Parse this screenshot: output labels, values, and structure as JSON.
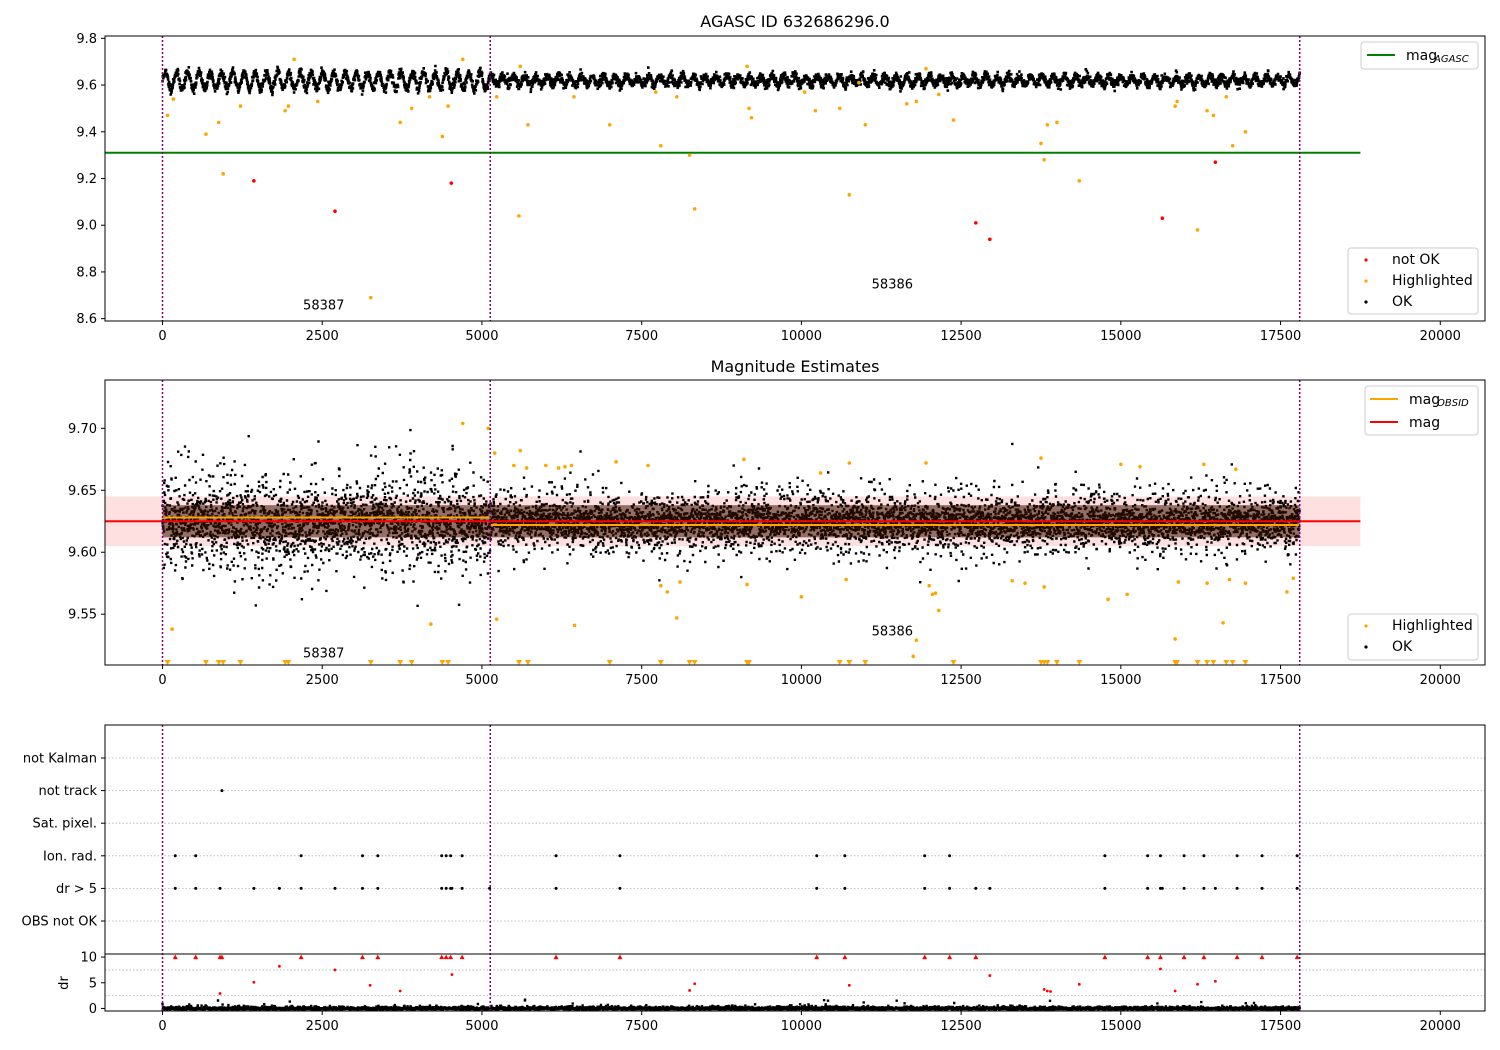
{
  "figure": {
    "background": "#ffffff"
  },
  "colors": {
    "ok": "#000000",
    "highlighted": "#ffa500",
    "not_ok": "#ff0000",
    "mag_agasc": "#008000",
    "mag_obsid": "#ffa500",
    "mag": "#ff0000",
    "mag_band": "#ff000022",
    "obs_boundary": "#800080",
    "grid": "#b0b0b0"
  },
  "chart_data": [
    {
      "type": "scatter",
      "title": "AGASC ID 632686296.0",
      "xlim": [
        -900,
        20700
      ],
      "ylim": [
        8.59,
        9.81
      ],
      "xticks": [
        0,
        2500,
        5000,
        7500,
        10000,
        12500,
        15000,
        17500,
        20000
      ],
      "yticks": [
        8.6,
        8.8,
        9.0,
        9.2,
        9.4,
        9.6,
        9.8
      ],
      "xtick_labels": [
        "0",
        "2500",
        "5000",
        "7500",
        "10000",
        "12500",
        "15000",
        "17500",
        "20000"
      ],
      "ytick_labels": [
        "8.6",
        "8.8",
        "9.0",
        "9.2",
        "9.4",
        "9.6",
        "9.8"
      ],
      "obs_boundaries": [
        0,
        5130,
        17800
      ],
      "obs_labels": [
        {
          "text": "58387",
          "x": 2200,
          "y": 8.64
        },
        {
          "text": "58386",
          "x": 11100,
          "y": 8.73
        }
      ],
      "mag_agasc_line": {
        "value": 9.31,
        "x_range": [
          -900,
          18750
        ]
      },
      "series": [
        {
          "name": "not OK",
          "x": [
            1430,
            2700,
            4520,
            12730,
            12950,
            15650,
            16480
          ],
          "y": [
            9.19,
            9.06,
            9.18,
            9.01,
            8.94,
            9.03,
            9.27
          ]
        },
        {
          "name": "Highlighted",
          "x": [
            80,
            170,
            680,
            880,
            950,
            1220,
            1920,
            1970,
            2060,
            2430,
            3260,
            3720,
            3900,
            4180,
            4380,
            4470,
            4700,
            5230,
            5580,
            5600,
            5720,
            6440,
            7000,
            7720,
            7800,
            8050,
            8250,
            8330,
            9150,
            9180,
            9220,
            10050,
            10220,
            10600,
            10750,
            10900,
            11000,
            11650,
            11800,
            11950,
            12150,
            12380,
            13750,
            13800,
            13850,
            14000,
            14350,
            15850,
            15880,
            16200,
            16350,
            16450,
            16650,
            16750,
            16950
          ],
          "y": [
            9.47,
            9.54,
            9.39,
            9.44,
            9.22,
            9.51,
            9.49,
            9.51,
            9.71,
            9.53,
            8.69,
            9.44,
            9.5,
            9.55,
            9.38,
            9.51,
            9.71,
            9.55,
            9.04,
            9.68,
            9.43,
            9.55,
            9.43,
            9.57,
            9.34,
            9.55,
            9.3,
            9.07,
            9.68,
            9.5,
            9.46,
            9.57,
            9.49,
            9.5,
            9.13,
            9.61,
            9.43,
            9.52,
            9.53,
            9.67,
            9.56,
            9.45,
            9.35,
            9.28,
            9.43,
            9.44,
            9.19,
            9.51,
            9.53,
            8.98,
            9.49,
            9.47,
            9.55,
            9.34,
            9.4
          ]
        },
        {
          "name": "OK",
          "x_range": [
            0,
            17800
          ],
          "y_center": 9.625,
          "y_spread": 0.04
        }
      ],
      "legends": [
        {
          "entries": [
            {
              "label": "mag",
              "sub": "AGASC",
              "color": "#008000",
              "kind": "line"
            }
          ],
          "placement": "upper right"
        },
        {
          "entries": [
            {
              "label": "not OK",
              "color": "#ff0000",
              "kind": "dot"
            },
            {
              "label": "Highlighted",
              "color": "#ffa500",
              "kind": "dot"
            },
            {
              "label": "OK",
              "color": "#000000",
              "kind": "dot"
            }
          ],
          "placement": "lower right"
        }
      ]
    },
    {
      "type": "scatter",
      "title": "Magnitude Estimates",
      "xlim": [
        -900,
        20700
      ],
      "ylim": [
        9.509,
        9.739
      ],
      "xticks": [
        0,
        2500,
        5000,
        7500,
        10000,
        12500,
        15000,
        17500,
        20000
      ],
      "yticks": [
        9.55,
        9.6,
        9.65,
        9.7
      ],
      "xtick_labels": [
        "0",
        "2500",
        "5000",
        "7500",
        "10000",
        "12500",
        "15000",
        "17500",
        "20000"
      ],
      "ytick_labels": [
        "9.55",
        "9.60",
        "9.65",
        "9.70"
      ],
      "obs_boundaries": [
        0,
        5130,
        17800
      ],
      "obs_labels": [
        {
          "text": "58387",
          "x": 2200,
          "y": 9.515
        },
        {
          "text": "58386",
          "x": 11100,
          "y": 9.533
        }
      ],
      "mag_line": {
        "value": 9.625,
        "band": [
          9.605,
          9.645
        ],
        "x_range": [
          -900,
          18750
        ]
      },
      "mag_obsid_lines": [
        {
          "x": [
            0,
            5130
          ],
          "value": 9.628
        },
        {
          "x": [
            5130,
            17800
          ],
          "value": 9.622
        }
      ],
      "series": [
        {
          "name": "Highlighted",
          "x": [
            150,
            4200,
            4700,
            5100,
            5200,
            5230,
            5500,
            5600,
            5700,
            6000,
            6200,
            6300,
            6400,
            6450,
            7100,
            7600,
            7800,
            7900,
            8050,
            8100,
            9100,
            9150,
            10000,
            10300,
            10700,
            10750,
            11750,
            11800,
            11950,
            12000,
            12050,
            12100,
            12150,
            13300,
            13500,
            13750,
            13800,
            14800,
            15000,
            15100,
            15300,
            15850,
            15900,
            16300,
            16350,
            16600,
            16700,
            16800,
            16950,
            17600,
            17700
          ],
          "y": [
            9.538,
            9.542,
            9.704,
            9.7,
            9.68,
            9.546,
            9.67,
            9.682,
            9.668,
            9.67,
            9.668,
            9.669,
            9.67,
            9.541,
            9.673,
            9.67,
            9.573,
            9.568,
            9.547,
            9.576,
            9.675,
            9.574,
            9.564,
            9.664,
            9.578,
            9.672,
            9.516,
            9.529,
            9.672,
            9.573,
            9.566,
            9.567,
            9.553,
            9.577,
            9.575,
            9.676,
            9.572,
            9.562,
            9.671,
            9.566,
            9.669,
            9.53,
            9.576,
            9.671,
            9.575,
            9.543,
            9.578,
            9.667,
            9.575,
            9.568,
            9.579
          ]
        },
        {
          "name": "Highlighted (below range)",
          "x": [
            80,
            680,
            880,
            950,
            1220,
            1920,
            1970,
            3260,
            3720,
            3900,
            4380,
            4470,
            5580,
            5720,
            7000,
            7800,
            8250,
            8330,
            9150,
            9180,
            10600,
            10750,
            11000,
            12380,
            13750,
            13800,
            13850,
            14000,
            14350,
            15850,
            15880,
            16200,
            16350,
            16450,
            16650,
            16750,
            16950
          ],
          "y": [
            8.5,
            8.5,
            8.5,
            8.5,
            8.5,
            8.5,
            8.5,
            8.5,
            8.5,
            8.5,
            8.5,
            8.5,
            8.5,
            8.5,
            8.5,
            8.5,
            8.5,
            8.5,
            8.5,
            8.5,
            8.5,
            8.5,
            8.5,
            8.5,
            8.5,
            8.5,
            8.5,
            8.5,
            8.5,
            8.5,
            8.5,
            8.5,
            8.5,
            8.5,
            8.5,
            8.5,
            8.5
          ]
        },
        {
          "name": "OK",
          "x_range": [
            0,
            17800
          ],
          "y_center": 9.625,
          "y_spread_left": 0.065,
          "y_spread_right": 0.04
        }
      ],
      "legends": [
        {
          "entries": [
            {
              "label": "mag",
              "sub": "OBSID",
              "color": "#ffa500",
              "kind": "line"
            },
            {
              "label": "mag",
              "color": "#ff0000",
              "kind": "line"
            }
          ],
          "placement": "upper right"
        },
        {
          "entries": [
            {
              "label": "Highlighted",
              "color": "#ffa500",
              "kind": "dot"
            },
            {
              "label": "OK",
              "color": "#000000",
              "kind": "dot"
            }
          ],
          "placement": "lower right"
        }
      ]
    },
    {
      "type": "scatter",
      "title": "",
      "xlim": [
        -900,
        20700
      ],
      "xticks": [
        0,
        2500,
        5000,
        7500,
        10000,
        12500,
        15000,
        17500,
        20000
      ],
      "xtick_labels": [
        "0",
        "2500",
        "5000",
        "7500",
        "10000",
        "12500",
        "15000",
        "17500",
        "20000"
      ],
      "obs_boundaries": [
        0,
        5130,
        17800
      ],
      "flag_rows": [
        "not Kalman",
        "not track",
        "Sat. pixel.",
        "Ion. rad.",
        "dr > 5",
        "OBS not OK"
      ],
      "flags": {
        "not track": [
          930
        ],
        "Ion. rad.": [
          200,
          520,
          2170,
          3130,
          3370,
          4370,
          4440,
          4510,
          4690,
          6160,
          7160,
          10240,
          10680,
          11930,
          12320,
          14750,
          15420,
          15620,
          15990,
          16300,
          16820,
          17210,
          17760
        ],
        "dr > 5": [
          200,
          520,
          900,
          1430,
          1830,
          2170,
          2700,
          3130,
          3370,
          4370,
          4440,
          4510,
          4530,
          4690,
          5120,
          6160,
          7160,
          10240,
          10680,
          11930,
          12320,
          12730,
          12950,
          14750,
          15420,
          15620,
          15650,
          15990,
          16300,
          16480,
          16820,
          17210,
          17760
        ]
      },
      "dr_axis": {
        "ylabel": "dr",
        "ylim": [
          -0.5,
          10.6
        ],
        "yticks": [
          0,
          5,
          10
        ],
        "ytick_labels": [
          "0",
          "5",
          "10"
        ]
      },
      "dr_high": {
        "x": [
          200,
          520,
          900,
          930,
          2170,
          3130,
          3370,
          4370,
          4440,
          4510,
          4690,
          6160,
          7160,
          10240,
          10680,
          11930,
          12320,
          12730,
          14750,
          15420,
          15620,
          15990,
          16300,
          16820,
          17210,
          17760
        ],
        "y": [
          10,
          10,
          10,
          10,
          10,
          10,
          10,
          10,
          10,
          10,
          10,
          10,
          10,
          10,
          10,
          10,
          10,
          10,
          10,
          10,
          10,
          10,
          10,
          10,
          10,
          10
        ]
      },
      "dr_red": {
        "x": [
          900,
          1430,
          1830,
          2700,
          3250,
          3720,
          4530,
          8250,
          8330,
          10750,
          12950,
          13800,
          13850,
          13900,
          14350,
          15620,
          15850,
          16200,
          16480
        ],
        "y": [
          2.9,
          5.1,
          8.2,
          7.5,
          4.5,
          3.4,
          6.6,
          3.5,
          4.8,
          4.5,
          6.4,
          3.7,
          3.4,
          3.3,
          4.7,
          7.7,
          3.4,
          4.7,
          5.3
        ]
      },
      "dr_ok": {
        "x_range": [
          0,
          17800
        ],
        "y_center": 0.3,
        "y_spread": 0.5
      }
    }
  ]
}
